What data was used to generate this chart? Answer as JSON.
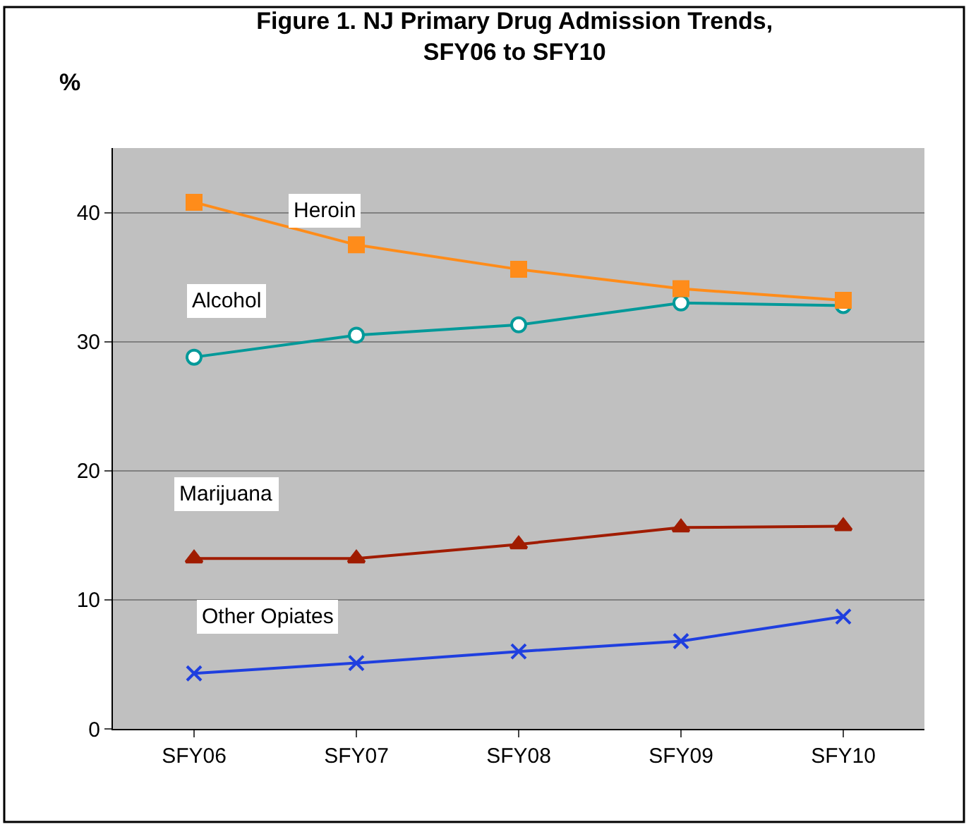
{
  "chart_data": {
    "type": "line",
    "title": "Figure 1. NJ Primary Drug Admission Trends,\nSFY06 to SFY10",
    "ylabel": "%",
    "categories": [
      "SFY06",
      "SFY07",
      "SFY08",
      "SFY09",
      "SFY10"
    ],
    "series": [
      {
        "name": "Heroin",
        "color": "#ff8c1a",
        "marker": "square",
        "values": [
          40.8,
          37.5,
          35.6,
          34.1,
          33.2
        ]
      },
      {
        "name": "Alcohol",
        "color": "#009999",
        "marker": "circle",
        "values": [
          28.8,
          30.5,
          31.3,
          33.0,
          32.8
        ]
      },
      {
        "name": "Marijuana",
        "color": "#a01c00",
        "marker": "triangle",
        "values": [
          13.2,
          13.2,
          14.3,
          15.6,
          15.7
        ]
      },
      {
        "name": "Other Opiates",
        "color": "#1f3fdf",
        "marker": "cross",
        "values": [
          4.3,
          5.1,
          6.0,
          6.8,
          8.7
        ]
      }
    ],
    "ylim": [
      0,
      45
    ],
    "yticks": [
      0,
      10,
      20,
      30,
      40
    ],
    "grid": "y",
    "legend": false
  }
}
